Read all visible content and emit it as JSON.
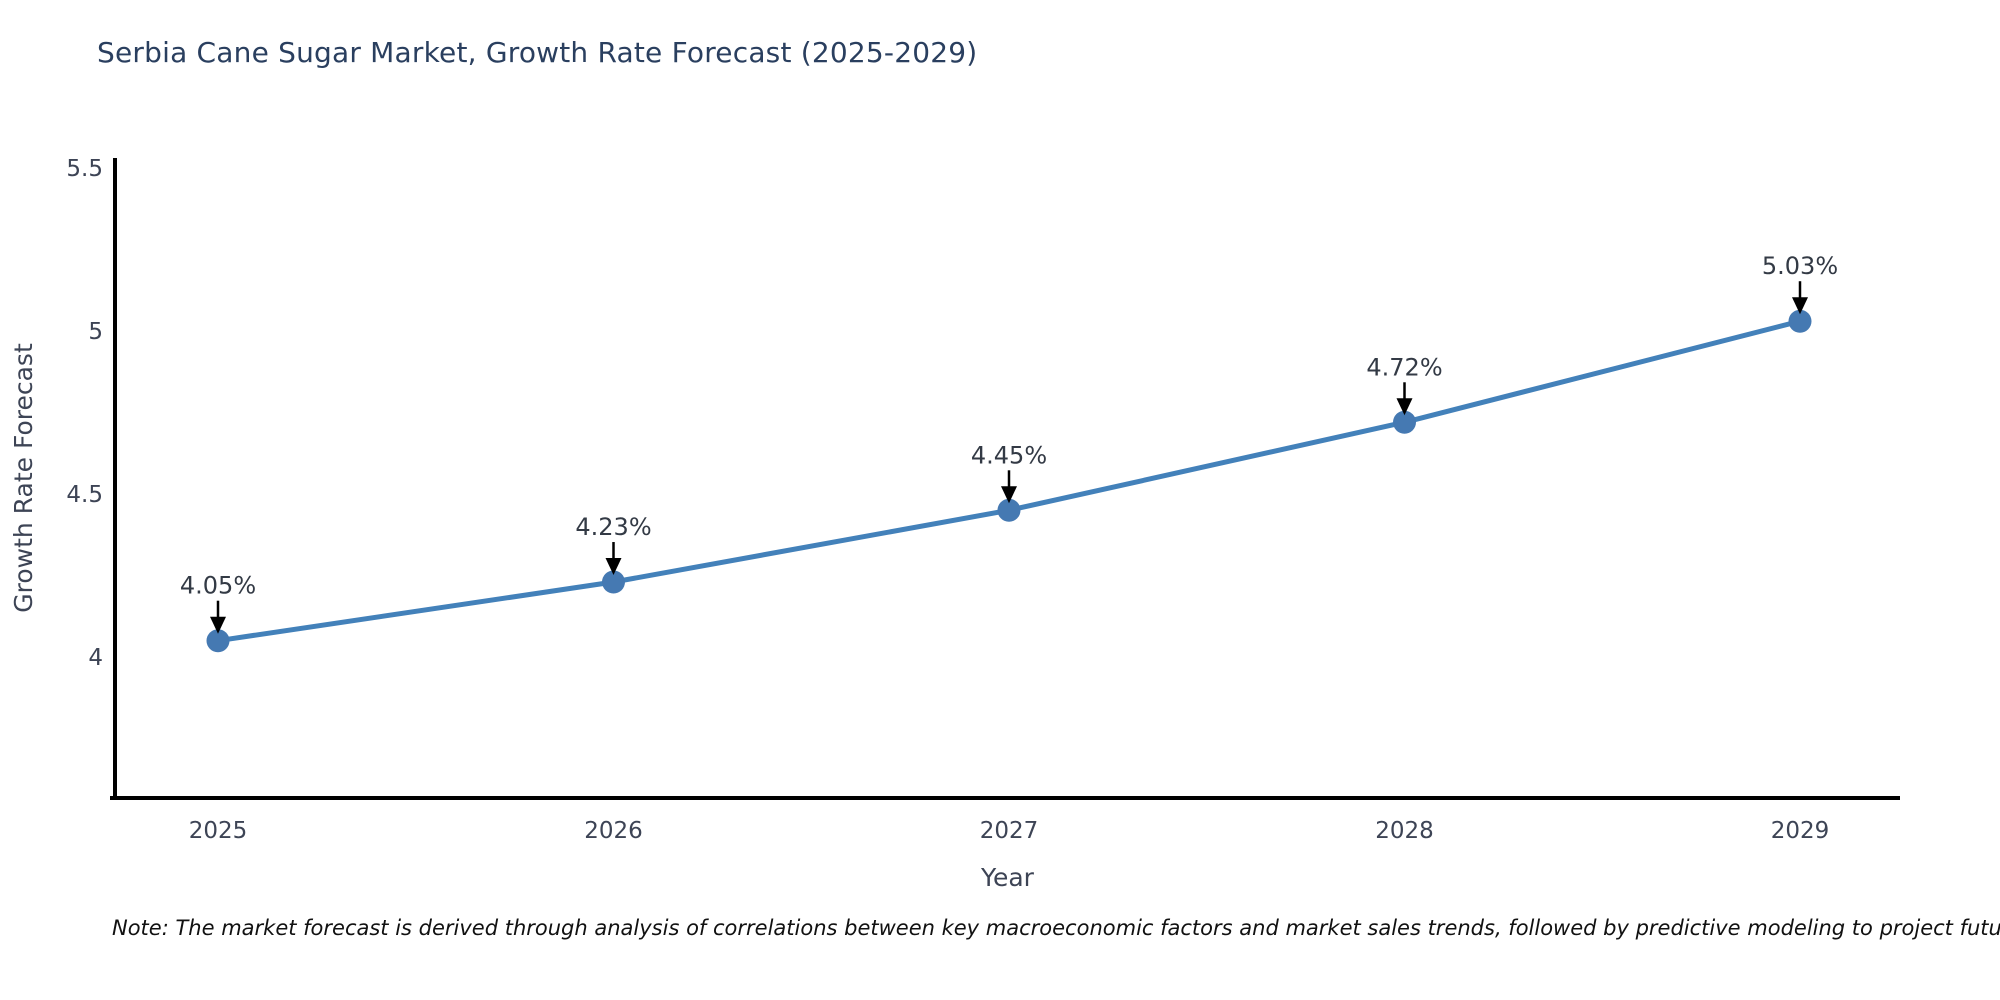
{
  "title": "Serbia Cane Sugar Market, Growth Rate Forecast (2025-2029)",
  "note": "Note: The market forecast is derived through analysis of correlations between key macroeconomic factors and market sales trends, followed by predictive modeling to project future sales",
  "colors": {
    "background": "#ffffff",
    "title": "#2a3f5f",
    "axis_spine": "#000000",
    "tick_label": "#3d4455",
    "axis_title": "#3d4455",
    "line": "#4381ba",
    "marker": "#4579b2",
    "annotation_text": "#333a45",
    "annotation_arrow": "#000000",
    "note_text": "#111111"
  },
  "chart_data": {
    "type": "line",
    "title": "Serbia Cane Sugar Market, Growth Rate Forecast (2025-2029)",
    "xlabel": "Year",
    "ylabel": "Growth Rate Forecast",
    "x": [
      2025,
      2026,
      2027,
      2028,
      2029
    ],
    "values": [
      4.05,
      4.23,
      4.45,
      4.72,
      5.03
    ],
    "point_labels": [
      "4.05%",
      "4.23%",
      "4.45%",
      "4.72%",
      "5.03%"
    ],
    "xtick_labels": [
      "2025",
      "2026",
      "2027",
      "2028",
      "2029"
    ],
    "ytick_values": [
      4,
      4.5,
      5,
      5.5
    ],
    "ytick_labels": [
      "4",
      "4.5",
      "5",
      "5.5"
    ],
    "ylim": [
      3.57,
      5.53
    ],
    "xlim": [
      2024.74,
      2029.25
    ],
    "grid": false,
    "legend": false,
    "annotation_style": "value label above point with downward black arrow"
  }
}
